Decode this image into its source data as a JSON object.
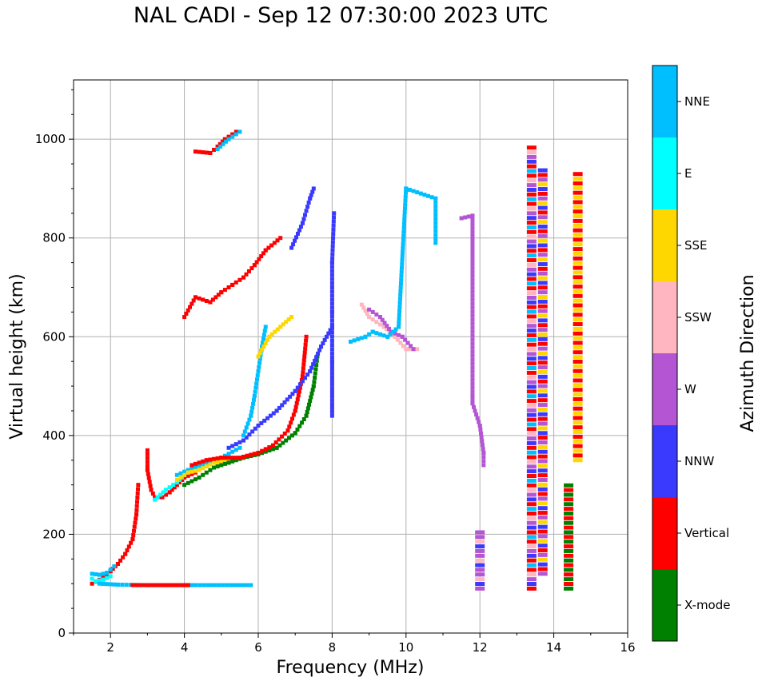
{
  "chart_data": {
    "type": "scatter",
    "title": "NAL CADI - Sep 12 07:30:00 2023 UTC",
    "xlabel": "Frequency (MHz)",
    "ylabel": "Virtual height (km)",
    "xlim": [
      1,
      16
    ],
    "ylim": [
      0,
      1120
    ],
    "xticks": [
      2,
      4,
      6,
      8,
      10,
      12,
      14,
      16
    ],
    "yticks": [
      0,
      200,
      400,
      600,
      800,
      1000
    ],
    "grid": true,
    "colorbar": {
      "label": "Azimuth Direction",
      "categories": [
        {
          "name": "X-mode",
          "color": "#008000"
        },
        {
          "name": "Vertical",
          "color": "#ff0000"
        },
        {
          "name": "NNW",
          "color": "#3a3aff"
        },
        {
          "name": "W",
          "color": "#b455d4"
        },
        {
          "name": "SSW",
          "color": "#ffb6c1"
        },
        {
          "name": "SSE",
          "color": "#ffd700"
        },
        {
          "name": "E",
          "color": "#00ffff"
        },
        {
          "name": "NNE",
          "color": "#00bfff"
        }
      ]
    },
    "segments": [
      {
        "dir": "Vertical",
        "points": [
          [
            1.5,
            100
          ],
          [
            1.8,
            112
          ],
          [
            2.0,
            125
          ],
          [
            2.2,
            140
          ],
          [
            2.4,
            160
          ],
          [
            2.6,
            190
          ],
          [
            2.7,
            240
          ],
          [
            2.75,
            300
          ]
        ]
      },
      {
        "dir": "NNE",
        "points": [
          [
            1.5,
            120
          ],
          [
            1.7,
            118
          ],
          [
            1.9,
            122
          ],
          [
            2.1,
            135
          ]
        ]
      },
      {
        "dir": "E",
        "points": [
          [
            1.5,
            110
          ],
          [
            1.6,
            105
          ],
          [
            1.8,
            108
          ],
          [
            2.0,
            115
          ]
        ]
      },
      {
        "dir": "Vertical",
        "points": [
          [
            3.0,
            370
          ],
          [
            3.0,
            330
          ],
          [
            3.1,
            290
          ],
          [
            3.2,
            275
          ],
          [
            3.4,
            275
          ],
          [
            3.6,
            285
          ],
          [
            3.8,
            300
          ],
          [
            4.0,
            315
          ],
          [
            4.3,
            325
          ]
        ]
      },
      {
        "dir": "E",
        "points": [
          [
            3.2,
            270
          ],
          [
            3.5,
            290
          ],
          [
            3.8,
            305
          ],
          [
            4.0,
            320
          ],
          [
            4.2,
            330
          ],
          [
            4.5,
            335
          ]
        ]
      },
      {
        "dir": "NNE",
        "points": [
          [
            3.8,
            320
          ],
          [
            4.1,
            330
          ],
          [
            4.4,
            340
          ],
          [
            4.7,
            348
          ],
          [
            5.0,
            355
          ],
          [
            5.5,
            375
          ]
        ]
      },
      {
        "dir": "SSE",
        "points": [
          [
            3.8,
            310
          ],
          [
            4.1,
            325
          ],
          [
            4.4,
            330
          ],
          [
            4.8,
            345
          ],
          [
            5.3,
            350
          ]
        ]
      },
      {
        "dir": "X-mode",
        "points": [
          [
            4.0,
            300
          ],
          [
            4.4,
            315
          ],
          [
            4.8,
            335
          ],
          [
            5.2,
            345
          ],
          [
            5.6,
            355
          ],
          [
            6.0,
            362
          ],
          [
            6.5,
            375
          ],
          [
            7.0,
            405
          ],
          [
            7.3,
            440
          ],
          [
            7.5,
            500
          ],
          [
            7.6,
            560
          ]
        ]
      },
      {
        "dir": "Vertical",
        "points": [
          [
            4.2,
            340
          ],
          [
            4.6,
            350
          ],
          [
            5.0,
            355
          ],
          [
            5.5,
            355
          ],
          [
            6.0,
            365
          ],
          [
            6.4,
            380
          ],
          [
            6.8,
            410
          ],
          [
            7.0,
            450
          ],
          [
            7.2,
            520
          ],
          [
            7.3,
            600
          ]
        ]
      },
      {
        "dir": "NNW",
        "points": [
          [
            5.2,
            375
          ],
          [
            5.6,
            390
          ],
          [
            6.0,
            420
          ],
          [
            6.5,
            450
          ],
          [
            7.0,
            490
          ],
          [
            7.4,
            530
          ],
          [
            7.7,
            580
          ],
          [
            8.0,
            620
          ]
        ]
      },
      {
        "dir": "NNE",
        "points": [
          [
            5.6,
            400
          ],
          [
            5.8,
            440
          ],
          [
            5.9,
            480
          ],
          [
            6.0,
            530
          ],
          [
            6.1,
            580
          ],
          [
            6.2,
            620
          ]
        ]
      },
      {
        "dir": "SSE",
        "points": [
          [
            6.0,
            560
          ],
          [
            6.3,
            600
          ],
          [
            6.6,
            620
          ],
          [
            6.9,
            640
          ]
        ]
      },
      {
        "dir": "NNW",
        "points": [
          [
            8.0,
            440
          ],
          [
            8.0,
            550
          ],
          [
            8.0,
            650
          ],
          [
            8.0,
            750
          ],
          [
            8.05,
            850
          ]
        ]
      },
      {
        "dir": "NNW",
        "points": [
          [
            6.9,
            780
          ],
          [
            7.2,
            830
          ],
          [
            7.4,
            880
          ],
          [
            7.5,
            900
          ]
        ]
      },
      {
        "dir": "Vertical",
        "points": [
          [
            4.0,
            640
          ],
          [
            4.3,
            680
          ],
          [
            4.7,
            670
          ],
          [
            5.0,
            690
          ],
          [
            5.3,
            705
          ],
          [
            5.6,
            720
          ],
          [
            5.9,
            745
          ],
          [
            6.2,
            775
          ],
          [
            6.6,
            800
          ]
        ]
      },
      {
        "dir": "Vertical",
        "points": [
          [
            4.3,
            975
          ],
          [
            4.7,
            972
          ],
          [
            4.9,
            985
          ],
          [
            5.1,
            1000
          ],
          [
            5.4,
            1015
          ]
        ]
      },
      {
        "dir": "NNE",
        "points": [
          [
            4.9,
            980
          ],
          [
            5.2,
            1000
          ],
          [
            5.5,
            1015
          ]
        ]
      },
      {
        "dir": "NNE",
        "points": [
          [
            1.7,
            100
          ],
          [
            2.2,
            98
          ],
          [
            3.0,
            97
          ],
          [
            3.5,
            97
          ],
          [
            4.0,
            97
          ],
          [
            4.2,
            97
          ],
          [
            5.8,
            97
          ]
        ]
      },
      {
        "dir": "Vertical",
        "points": [
          [
            4.0,
            97
          ],
          [
            4.1,
            97
          ],
          [
            2.6,
            97
          ]
        ]
      },
      {
        "dir": "SSW",
        "points": [
          [
            8.8,
            665
          ],
          [
            9.0,
            640
          ],
          [
            9.4,
            620
          ],
          [
            9.7,
            600
          ],
          [
            10.0,
            575
          ],
          [
            10.3,
            575
          ]
        ]
      },
      {
        "dir": "W",
        "points": [
          [
            9.0,
            655
          ],
          [
            9.3,
            640
          ],
          [
            9.6,
            610
          ],
          [
            9.9,
            600
          ],
          [
            10.2,
            575
          ]
        ]
      },
      {
        "dir": "NNE",
        "points": [
          [
            8.5,
            590
          ],
          [
            8.9,
            600
          ],
          [
            9.1,
            610
          ],
          [
            9.5,
            600
          ],
          [
            9.8,
            620
          ],
          [
            10.0,
            900
          ],
          [
            10.8,
            880
          ],
          [
            10.8,
            790
          ]
        ]
      },
      {
        "dir": "W",
        "points": [
          [
            11.5,
            840
          ],
          [
            11.8,
            845
          ],
          [
            11.8,
            480
          ],
          [
            11.8,
            465
          ],
          [
            12.0,
            420
          ],
          [
            12.1,
            365
          ],
          [
            12.1,
            340
          ]
        ]
      }
    ],
    "columns": [
      {
        "x": 12.0,
        "from": 90,
        "to": 210,
        "dirs": [
          "W",
          "NNW",
          "SSW",
          "W"
        ]
      },
      {
        "x": 13.4,
        "from": 90,
        "to": 990,
        "dirs": [
          "Vertical",
          "NNW",
          "W",
          "SSW",
          "Vertical",
          "NNE"
        ]
      },
      {
        "x": 13.7,
        "from": 120,
        "to": 940,
        "dirs": [
          "W",
          "Vertical",
          "NNW",
          "SSE"
        ]
      },
      {
        "x": 14.4,
        "from": 90,
        "to": 300,
        "dirs": [
          "X-mode",
          "Vertical"
        ]
      },
      {
        "x": 14.65,
        "from": 350,
        "to": 930,
        "dirs": [
          "SSE",
          "Vertical"
        ]
      }
    ]
  }
}
